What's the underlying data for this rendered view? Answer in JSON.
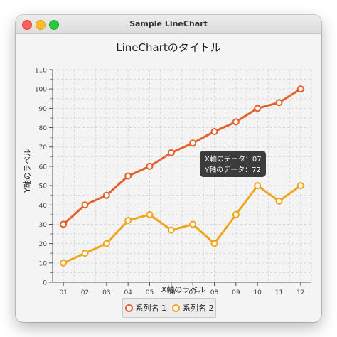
{
  "window": {
    "title": "Sample LineChart"
  },
  "chart_data": {
    "type": "line",
    "title": "LineChartのタイトル",
    "xlabel": "X軸のラベル",
    "ylabel": "Y軸のラベル",
    "categories": [
      "01",
      "02",
      "03",
      "04",
      "05",
      "06",
      "07",
      "08",
      "09",
      "10",
      "11",
      "12"
    ],
    "ylim": [
      0,
      110
    ],
    "yticks": [
      0,
      10,
      20,
      30,
      40,
      50,
      60,
      70,
      80,
      90,
      100,
      110
    ],
    "grid": true,
    "legend_position": "bottom",
    "series": [
      {
        "name": "系列名 1",
        "color": "#e5602b",
        "values": [
          30,
          40,
          45,
          55,
          60,
          67,
          72,
          78,
          83,
          90,
          93,
          100
        ]
      },
      {
        "name": "系列名 2",
        "color": "#f0a51d",
        "values": [
          10,
          15,
          20,
          32,
          35,
          27,
          30,
          20,
          35,
          50,
          42,
          50
        ]
      }
    ],
    "tooltip": {
      "line1": "X軸のデータ：07",
      "line2": "Y軸のデータ：72"
    }
  }
}
